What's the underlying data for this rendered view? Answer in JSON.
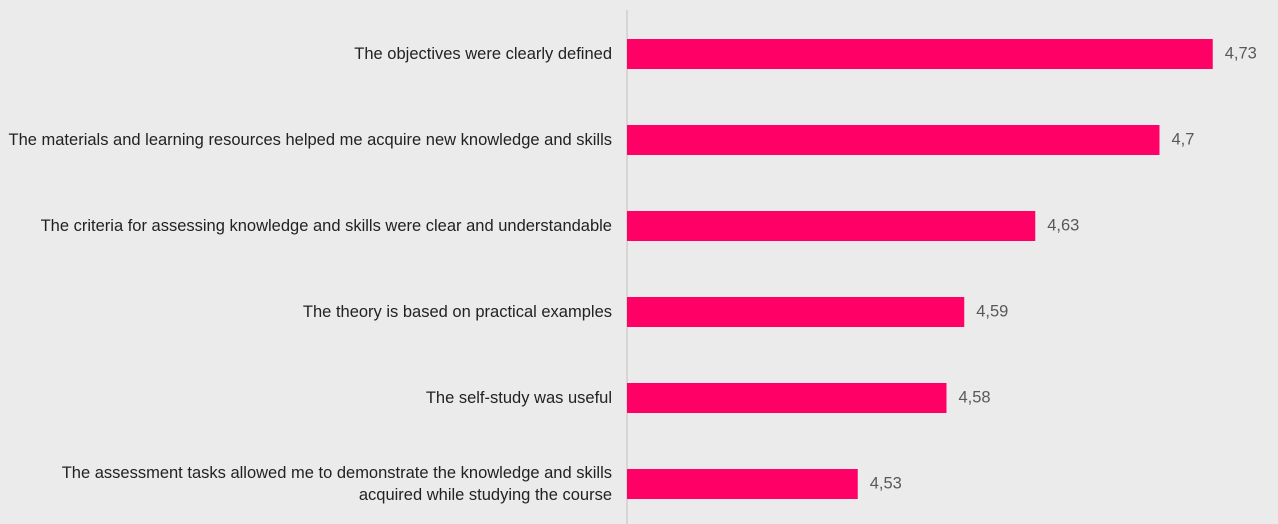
{
  "chart_data": {
    "type": "bar",
    "orientation": "horizontal",
    "categories": [
      "The objectives were clearly defined",
      "The materials and learning resources helped me acquire new knowledge and skills",
      "The criteria for assessing knowledge and skills were clear and understandable",
      "The theory is based on practical examples",
      "The self-study was useful",
      "The assessment tasks allowed me to demonstrate the knowledge and skills acquired while studying the course"
    ],
    "values": [
      4.73,
      4.7,
      4.63,
      4.59,
      4.58,
      4.53
    ],
    "value_labels": [
      "4,73",
      "4,7",
      "4,63",
      "4,59",
      "4,58",
      "4,53"
    ],
    "color": "#ff0066",
    "xlim": [
      4.4,
      4.76
    ]
  }
}
